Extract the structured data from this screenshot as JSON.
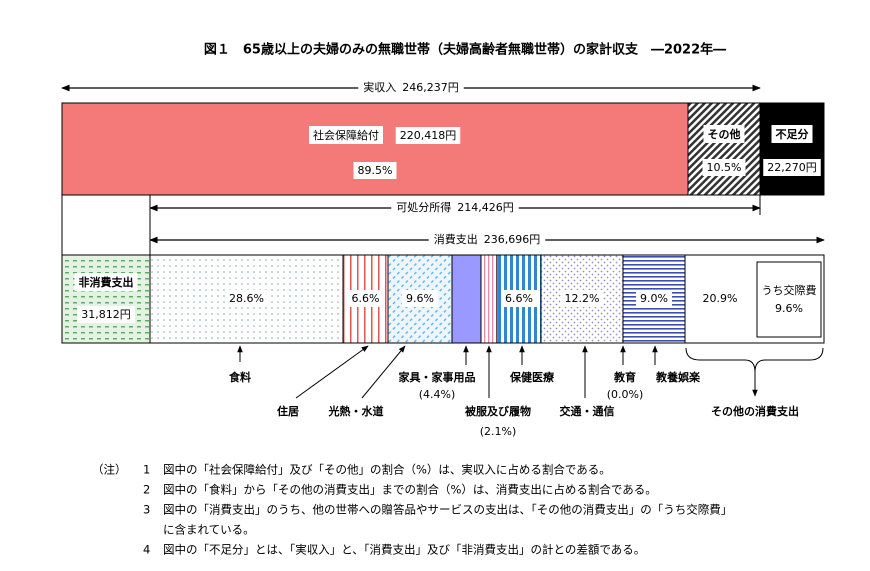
{
  "title": "図１　65歳以上の夫婦のみの無職世帯（夫婦高齢者無職世帯）の家計収支　―2022年―",
  "income_arrow": {
    "label": "実収入",
    "value": "246,237円"
  },
  "disposable_arrow": {
    "label": "可処分所得",
    "value": "214,426円"
  },
  "consumption_arrow": {
    "label": "消費支出",
    "value": "236,696円"
  },
  "income": [
    {
      "label": "社会保障給付",
      "value": "220,418円",
      "share": "89.5%"
    },
    {
      "label": "その他",
      "share": "10.5%"
    },
    {
      "label": "不足分",
      "value": "22,270円"
    }
  ],
  "non_consumption": {
    "label": "非消費支出",
    "value": "31,812円"
  },
  "expenditure": [
    {
      "label": "食料",
      "share": "28.6%"
    },
    {
      "label": "住居",
      "share": "6.6%"
    },
    {
      "label": "光熱・水道",
      "share": "9.6%"
    },
    {
      "label": "家具・家事用品",
      "share": "(4.4%)"
    },
    {
      "label": "被服及び履物",
      "share": "(2.1%)"
    },
    {
      "label": "保健医療",
      "share": "6.6%"
    },
    {
      "label": "交通・通信",
      "share": "12.2%"
    },
    {
      "label": "教育",
      "share": "(0.0%)"
    },
    {
      "label": "教養娯楽",
      "share": "9.0%"
    },
    {
      "label": "その他の消費支出",
      "share": "20.9%",
      "sub_label": "うち交際費",
      "sub_share": "9.6%"
    }
  ],
  "notes": {
    "marker": "（注）",
    "items": [
      {
        "number": "1",
        "lines": [
          "図中の「社会保障給付」及び「その他」の割合（%）は、実収入に占める割合である。"
        ]
      },
      {
        "number": "2",
        "lines": [
          "図中の「食料」から「その他の消費支出」までの割合（%）は、消費支出に占める割合である。"
        ]
      },
      {
        "number": "3",
        "lines": [
          "図中の「消費支出」のうち、他の世帯への贈答品やサービスの支出は、「その他の消費支出」の「うち交際費」",
          "に含まれている。"
        ]
      },
      {
        "number": "4",
        "lines": [
          "図中の「不足分」とは、「実収入」と、「消費支出」及び「非消費支出」の計との差額である。"
        ]
      }
    ]
  }
}
